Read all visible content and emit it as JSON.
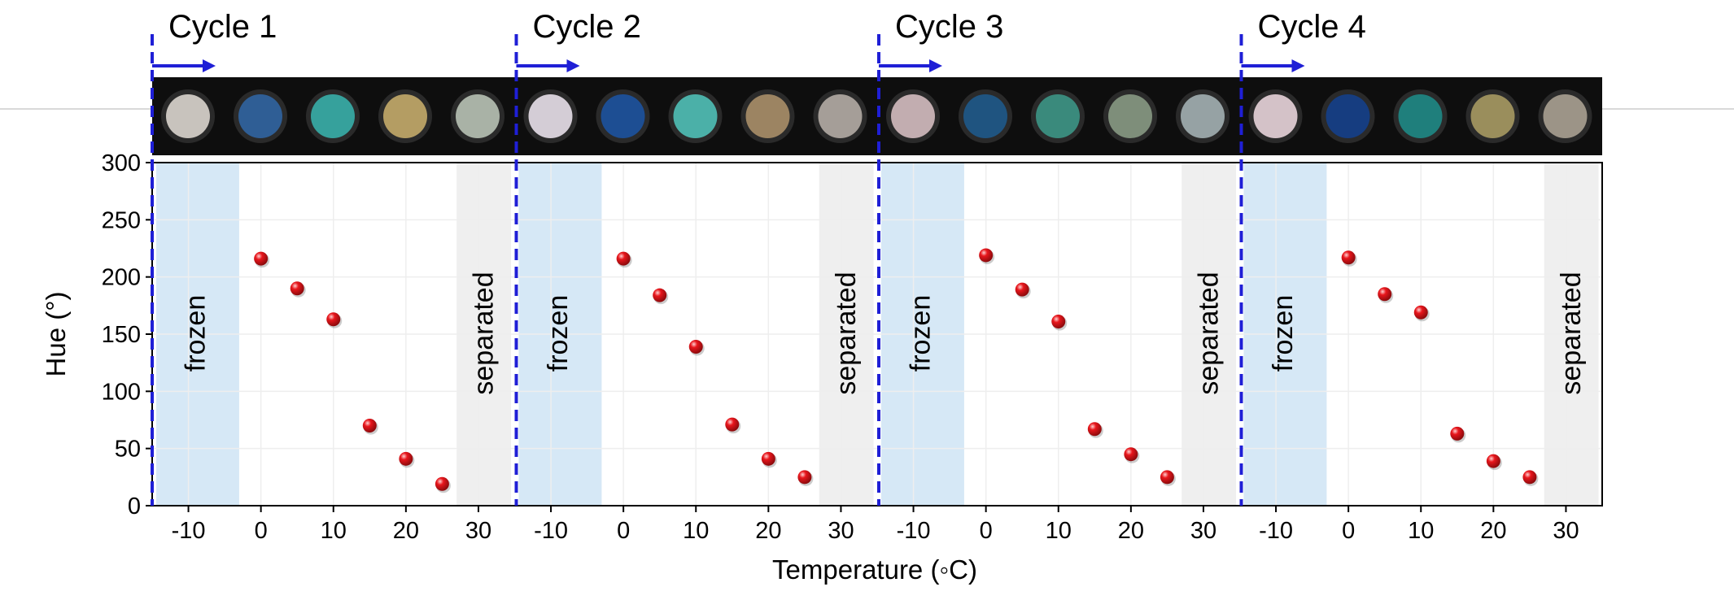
{
  "chart_data": {
    "type": "scatter",
    "xlabel": "Temperature (◦C)",
    "ylabel": "Hue (°)",
    "ylim": [
      0,
      300
    ],
    "xlim": [
      -15,
      35
    ],
    "yticks": [
      0,
      50,
      100,
      150,
      200,
      250,
      300
    ],
    "xticks": [
      -10,
      0,
      10,
      20,
      30
    ],
    "grid": true,
    "marker_color": "#e8161c",
    "marker_line_color": "#1f1fd6",
    "frozen_color": "#d6e8f6",
    "separated_color": "#efefef",
    "frozen_label": "frozen",
    "separated_label": "separated",
    "panels": [
      {
        "name": "Cycle 1",
        "x": [
          0,
          5,
          10,
          15,
          20,
          25
        ],
        "values": [
          216,
          190,
          163,
          70,
          41,
          19
        ],
        "sample_colors": [
          "#c8c3bd",
          "#2f5e95",
          "#36a19c",
          "#b49d63",
          "#a9b2a6"
        ]
      },
      {
        "name": "Cycle 2",
        "x": [
          0,
          5,
          10,
          15,
          20,
          25
        ],
        "values": [
          216,
          184,
          139,
          71,
          41,
          25
        ],
        "sample_colors": [
          "#d4cdd6",
          "#1d4e93",
          "#4bb0a8",
          "#9c8462",
          "#a59e98"
        ]
      },
      {
        "name": "Cycle 3",
        "x": [
          0,
          5,
          10,
          15,
          20,
          25
        ],
        "values": [
          219,
          189,
          161,
          67,
          45,
          25
        ],
        "sample_colors": [
          "#c2adb0",
          "#1f5480",
          "#3a8a7c",
          "#7e8e7a",
          "#96a2a4"
        ]
      },
      {
        "name": "Cycle 4",
        "x": [
          0,
          5,
          10,
          15,
          20,
          25
        ],
        "values": [
          217,
          185,
          169,
          63,
          39,
          25
        ],
        "sample_colors": [
          "#d4c2c8",
          "#163d80",
          "#1f7f7c",
          "#9a8e5c",
          "#9c9487"
        ]
      }
    ]
  }
}
